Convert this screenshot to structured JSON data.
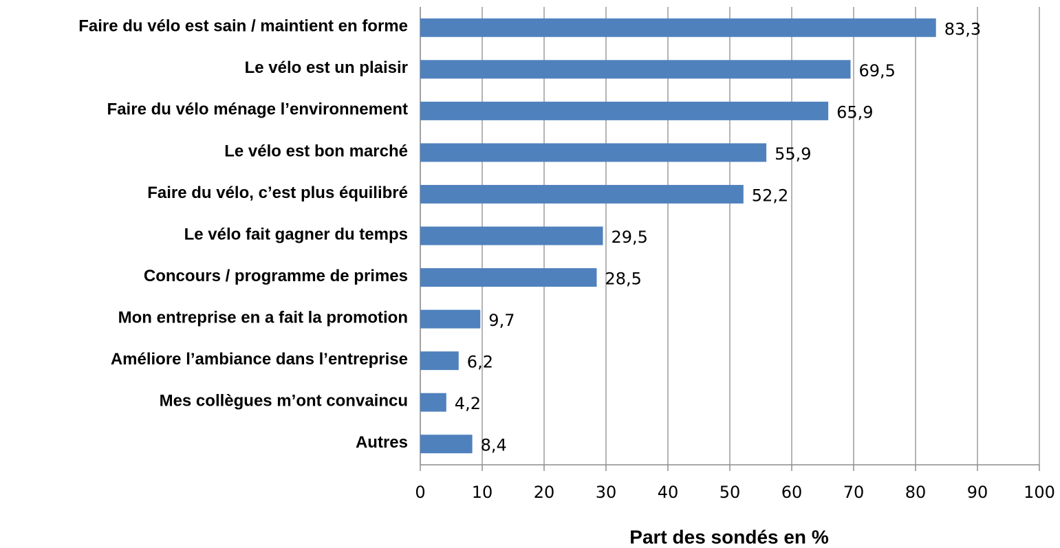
{
  "chart_data": {
    "type": "bar",
    "orientation": "horizontal",
    "x_label": "Part des sondés en %",
    "categories": [
      "Faire du vélo est sain / maintient en forme",
      "Le vélo est un plaisir",
      "Faire du vélo ménage l’environnement",
      "Le vélo est bon marché",
      "Faire du vélo, c’est plus équilibré",
      "Le vélo fait gagner du temps",
      "Concours / programme de primes",
      "Mon entreprise en a fait la promotion",
      "Améliore l’ambiance dans l’entreprise",
      "Mes collègues m’ont convaincu",
      "Autres"
    ],
    "values": [
      83.3,
      69.5,
      65.9,
      55.9,
      52.2,
      29.5,
      28.5,
      9.7,
      6.2,
      4.2,
      8.4
    ],
    "value_labels": [
      "83,3",
      "69,5",
      "65,9",
      "55,9",
      "52,2",
      "29,5",
      "28,5",
      "9,7",
      "6,2",
      "4,2",
      "8,4"
    ],
    "color": "#4f81bd",
    "xlim": [
      0,
      100
    ],
    "xticks": [
      0,
      10,
      20,
      30,
      40,
      50,
      60,
      70,
      80,
      90,
      100
    ],
    "grid": true
  }
}
